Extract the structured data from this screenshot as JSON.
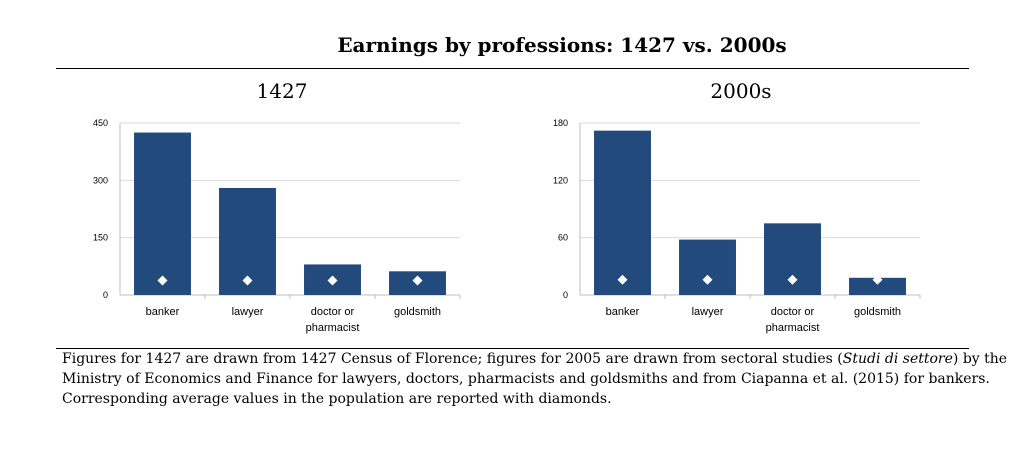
{
  "title": "Earnings by professions: 1427 vs. 2000s",
  "caption": {
    "line1_a": "Figures for 1427 are drawn from 1427 Census of Florence; figures for 2005 are drawn from sectoral studies (",
    "line1_em": "Studi di settore",
    "line1_b": ") by the",
    "line2": "Ministry of Economics and Finance for lawyers, doctors, pharmacists and goldsmiths and from Ciapanna et al. (2015) for bankers.",
    "line3": "Corresponding average values in the population are reported with diamonds."
  },
  "colors": {
    "bar": "#234a7d",
    "diamond": "#ffffff",
    "grid": "#d9d9d9"
  },
  "chart_data": [
    {
      "type": "bar",
      "title": "1427",
      "categories": [
        [
          "banker"
        ],
        [
          "lawyer"
        ],
        [
          "doctor or",
          "pharmacist"
        ],
        [
          "goldsmith"
        ]
      ],
      "values": [
        425,
        280,
        80,
        62
      ],
      "average_markers": [
        38,
        38,
        38,
        38
      ],
      "yticks": [
        0,
        150,
        300,
        450
      ],
      "ylim": [
        0,
        450
      ],
      "grid": true
    },
    {
      "type": "bar",
      "title": "2000s",
      "categories": [
        [
          "banker"
        ],
        [
          "lawyer"
        ],
        [
          "doctor or",
          "pharmacist"
        ],
        [
          "goldsmith"
        ]
      ],
      "values": [
        172,
        58,
        75,
        18
      ],
      "average_markers": [
        16,
        16,
        16,
        16
      ],
      "yticks": [
        0,
        60,
        120,
        180
      ],
      "ylim": [
        0,
        180
      ],
      "grid": true
    }
  ]
}
